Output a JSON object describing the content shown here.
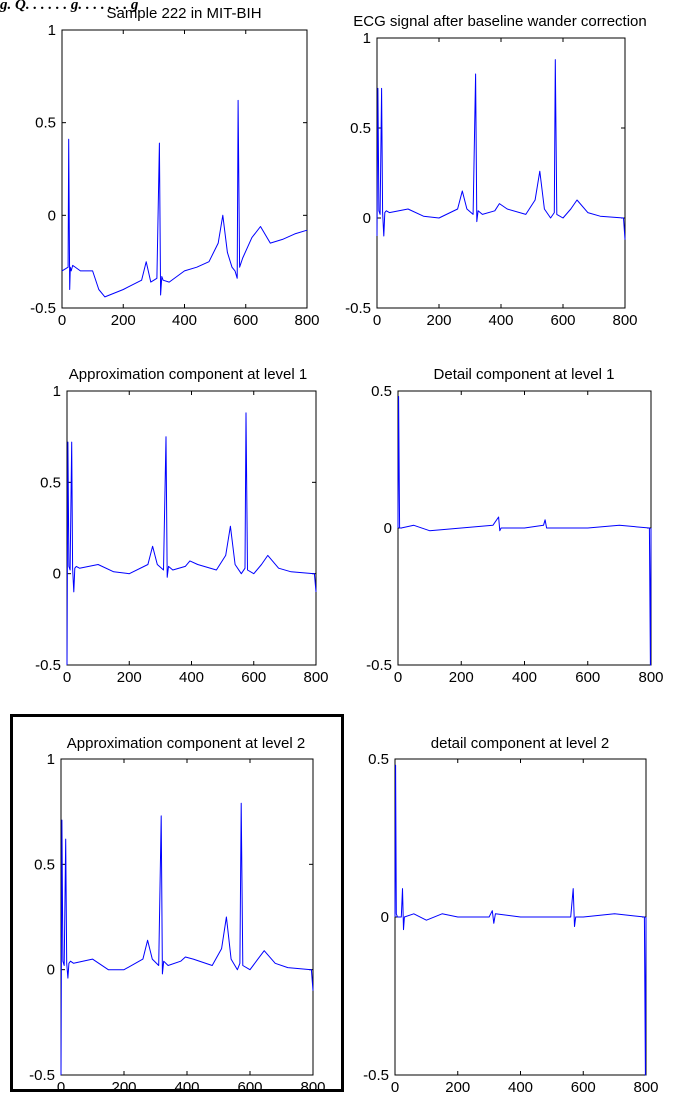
{
  "header_fragment": "g. Q. . . . . . g. . . . . . . g",
  "colors": {
    "trace": "#0000ff",
    "axes": "#000000",
    "highlight_frame": "#000000"
  },
  "highlighted_panel": "Approximation component at level 2",
  "chart_data": [
    {
      "type": "line",
      "title": "Sample 222 in MIT-BIH",
      "xlim": [
        0,
        800
      ],
      "ylim": [
        -0.5,
        1
      ],
      "xticks": [
        "0",
        "200",
        "400",
        "600",
        "800"
      ],
      "yticks": [
        "1",
        "0.5",
        "0",
        "-0.5"
      ],
      "series": [
        {
          "x": [
            0,
            20,
            22,
            25,
            27,
            30,
            35,
            60,
            100,
            120,
            140,
            200,
            260,
            275,
            290,
            310,
            318,
            322,
            326,
            330,
            350,
            400,
            440,
            480,
            510,
            525,
            540,
            555,
            565,
            572,
            575,
            580,
            590,
            620,
            648,
            680,
            720,
            760,
            800
          ],
          "y": [
            -0.3,
            -0.28,
            0.41,
            -0.4,
            -0.28,
            -0.3,
            -0.27,
            -0.3,
            -0.3,
            -0.4,
            -0.44,
            -0.4,
            -0.35,
            -0.25,
            -0.36,
            -0.34,
            0.39,
            -0.43,
            -0.33,
            -0.35,
            -0.36,
            -0.3,
            -0.28,
            -0.25,
            -0.15,
            0.0,
            -0.2,
            -0.28,
            -0.3,
            -0.34,
            0.62,
            -0.28,
            -0.23,
            -0.12,
            -0.06,
            -0.15,
            -0.13,
            -0.1,
            -0.08
          ]
        }
      ]
    },
    {
      "type": "line",
      "title": "ECG signal after  baseline wander correction",
      "xlim": [
        0,
        800
      ],
      "ylim": [
        -0.5,
        1
      ],
      "xticks": [
        "0",
        "200",
        "400",
        "600",
        "800"
      ],
      "yticks": [
        "1",
        "0.5",
        "0",
        "-0.5"
      ],
      "series": [
        {
          "x": [
            0,
            3,
            6,
            10,
            15,
            18,
            22,
            25,
            30,
            40,
            100,
            150,
            200,
            260,
            275,
            290,
            310,
            318,
            322,
            326,
            340,
            380,
            395,
            420,
            480,
            510,
            525,
            540,
            560,
            572,
            575,
            580,
            600,
            625,
            645,
            680,
            720,
            795,
            800
          ],
          "y": [
            -0.1,
            0.72,
            0.04,
            0.02,
            0.72,
            0.03,
            -0.1,
            0.03,
            0.04,
            0.03,
            0.05,
            0.01,
            0.0,
            0.05,
            0.15,
            0.05,
            0.02,
            0.8,
            -0.02,
            0.04,
            0.02,
            0.04,
            0.08,
            0.05,
            0.02,
            0.1,
            0.26,
            0.05,
            0.0,
            0.03,
            0.88,
            0.02,
            0.0,
            0.05,
            0.1,
            0.03,
            0.01,
            0.0,
            -0.12
          ]
        }
      ]
    },
    {
      "type": "line",
      "title": "Approximation component at level 1",
      "xlim": [
        0,
        800
      ],
      "ylim": [
        -0.5,
        1
      ],
      "xticks": [
        "0",
        "200",
        "400",
        "600",
        "800"
      ],
      "yticks": [
        "1",
        "0.5",
        "0",
        "-0.5"
      ],
      "series": [
        {
          "x": [
            0,
            3,
            6,
            10,
            15,
            18,
            22,
            25,
            30,
            40,
            100,
            150,
            200,
            260,
            275,
            290,
            310,
            318,
            322,
            326,
            340,
            380,
            395,
            420,
            480,
            510,
            525,
            540,
            560,
            572,
            575,
            580,
            600,
            625,
            645,
            680,
            720,
            795,
            800
          ],
          "y": [
            -0.5,
            0.72,
            0.04,
            0.02,
            0.72,
            0.03,
            -0.1,
            0.03,
            0.04,
            0.03,
            0.05,
            0.01,
            0.0,
            0.05,
            0.15,
            0.05,
            0.02,
            0.75,
            -0.02,
            0.04,
            0.02,
            0.04,
            0.07,
            0.05,
            0.02,
            0.1,
            0.26,
            0.05,
            0.0,
            0.03,
            0.88,
            0.02,
            0.0,
            0.05,
            0.1,
            0.03,
            0.01,
            0.0,
            -0.1
          ]
        }
      ]
    },
    {
      "type": "line",
      "title": "Detail component at level 1",
      "xlim": [
        0,
        800
      ],
      "ylim": [
        -0.5,
        0.5
      ],
      "xticks": [
        "0",
        "200",
        "400",
        "600",
        "800"
      ],
      "yticks": [
        "0.5",
        "0",
        "-0.5"
      ],
      "series": [
        {
          "x": [
            0,
            2,
            5,
            10,
            50,
            100,
            200,
            300,
            318,
            322,
            326,
            400,
            460,
            465,
            470,
            600,
            700,
            795,
            798,
            800
          ],
          "y": [
            0.0,
            0.48,
            0.0,
            0.0,
            0.01,
            -0.01,
            0.0,
            0.01,
            0.04,
            -0.01,
            0.0,
            0.0,
            0.01,
            0.03,
            0.0,
            0.0,
            0.01,
            0.0,
            -0.5,
            0.0
          ]
        }
      ]
    },
    {
      "type": "line",
      "title": "Approximation component at level 2",
      "xlim": [
        0,
        800
      ],
      "ylim": [
        -0.5,
        1
      ],
      "xticks": [
        "0",
        "200",
        "400",
        "600",
        "800"
      ],
      "yticks": [
        "1",
        "0.5",
        "0",
        "-0.5"
      ],
      "series": [
        {
          "x": [
            0,
            3,
            6,
            10,
            15,
            18,
            22,
            25,
            30,
            40,
            100,
            150,
            200,
            260,
            275,
            290,
            310,
            318,
            322,
            326,
            340,
            380,
            395,
            420,
            480,
            510,
            525,
            540,
            560,
            568,
            572,
            577,
            600,
            625,
            645,
            680,
            720,
            795,
            800
          ],
          "y": [
            -0.5,
            0.71,
            0.04,
            0.02,
            0.62,
            0.03,
            -0.04,
            0.03,
            0.04,
            0.03,
            0.05,
            0.0,
            0.0,
            0.05,
            0.14,
            0.05,
            0.02,
            0.73,
            -0.02,
            0.04,
            0.02,
            0.04,
            0.06,
            0.05,
            0.02,
            0.1,
            0.25,
            0.05,
            0.0,
            0.03,
            0.79,
            0.02,
            0.0,
            0.05,
            0.09,
            0.03,
            0.01,
            0.0,
            -0.1
          ]
        }
      ]
    },
    {
      "type": "line",
      "title": "detail component at level 2",
      "xlim": [
        0,
        800
      ],
      "ylim": [
        -0.5,
        0.5
      ],
      "xticks": [
        "0",
        "200",
        "400",
        "600",
        "800"
      ],
      "yticks": [
        "0.5",
        "0",
        "-0.5"
      ],
      "series": [
        {
          "x": [
            0,
            2,
            4,
            8,
            12,
            20,
            24,
            27,
            30,
            60,
            100,
            150,
            200,
            300,
            310,
            315,
            320,
            400,
            500,
            560,
            568,
            572,
            576,
            600,
            700,
            795,
            798,
            800
          ],
          "y": [
            0.0,
            0.48,
            0.01,
            0.0,
            0.0,
            0.0,
            0.09,
            -0.04,
            0.0,
            0.01,
            -0.01,
            0.01,
            0.0,
            0.0,
            0.02,
            -0.02,
            0.01,
            0.0,
            0.0,
            0.0,
            0.09,
            -0.03,
            0.0,
            0.0,
            0.01,
            0.0,
            -0.5,
            0.0
          ]
        }
      ]
    }
  ]
}
